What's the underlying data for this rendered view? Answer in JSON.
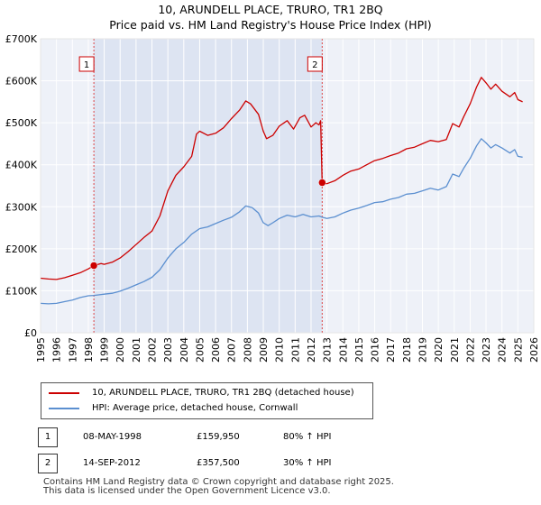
{
  "chart_data": {
    "type": "line",
    "title_line1": "10, ARUNDELL PLACE, TRURO, TR1 2BQ",
    "title_line2": "Price paid vs. HM Land Registry's House Price Index (HPI)",
    "xlim": [
      1995,
      2026
    ],
    "ylim": [
      0,
      700000
    ],
    "x_ticks": [
      "1995",
      "1996",
      "1997",
      "1998",
      "1999",
      "2000",
      "2001",
      "2002",
      "2003",
      "2004",
      "2005",
      "2006",
      "2007",
      "2008",
      "2009",
      "2010",
      "2011",
      "2012",
      "2013",
      "2014",
      "2015",
      "2016",
      "2017",
      "2018",
      "2019",
      "2020",
      "2021",
      "2022",
      "2023",
      "2024",
      "2025",
      "2026"
    ],
    "y_ticks": [
      {
        "value": 0,
        "label": "£0"
      },
      {
        "value": 100000,
        "label": "£100K"
      },
      {
        "value": 200000,
        "label": "£200K"
      },
      {
        "value": 300000,
        "label": "£300K"
      },
      {
        "value": 400000,
        "label": "£400K"
      },
      {
        "value": 500000,
        "label": "£500K"
      },
      {
        "value": 600000,
        "label": "£600K"
      },
      {
        "value": 700000,
        "label": "£700K"
      }
    ],
    "grid": true,
    "series": [
      {
        "name": "10, ARUNDELL PLACE, TRURO, TR1 2BQ (detached house)",
        "color": "#cc0000",
        "points": [
          [
            1995.0,
            130000
          ],
          [
            1995.5,
            128000
          ],
          [
            1996.0,
            127000
          ],
          [
            1996.5,
            131000
          ],
          [
            1997.0,
            137000
          ],
          [
            1997.5,
            143000
          ],
          [
            1998.0,
            152000
          ],
          [
            1998.35,
            159950
          ],
          [
            1998.8,
            165000
          ],
          [
            1999.0,
            163000
          ],
          [
            1999.5,
            168000
          ],
          [
            2000.0,
            178000
          ],
          [
            2000.5,
            193000
          ],
          [
            2001.0,
            210000
          ],
          [
            2001.5,
            227000
          ],
          [
            2002.0,
            242000
          ],
          [
            2002.5,
            278000
          ],
          [
            2003.0,
            338000
          ],
          [
            2003.5,
            375000
          ],
          [
            2004.0,
            395000
          ],
          [
            2004.5,
            420000
          ],
          [
            2004.8,
            473000
          ],
          [
            2005.0,
            480000
          ],
          [
            2005.5,
            470000
          ],
          [
            2006.0,
            475000
          ],
          [
            2006.5,
            488000
          ],
          [
            2007.0,
            510000
          ],
          [
            2007.5,
            530000
          ],
          [
            2007.9,
            552000
          ],
          [
            2008.2,
            545000
          ],
          [
            2008.7,
            520000
          ],
          [
            2009.0,
            480000
          ],
          [
            2009.2,
            462000
          ],
          [
            2009.6,
            470000
          ],
          [
            2010.0,
            492000
          ],
          [
            2010.5,
            505000
          ],
          [
            2010.9,
            485000
          ],
          [
            2011.3,
            512000
          ],
          [
            2011.6,
            518000
          ],
          [
            2012.0,
            490000
          ],
          [
            2012.3,
            500000
          ],
          [
            2012.5,
            495000
          ],
          [
            2012.6,
            505000
          ],
          [
            2012.7,
            357500
          ],
          [
            2013.0,
            355000
          ],
          [
            2013.5,
            362000
          ],
          [
            2014.0,
            375000
          ],
          [
            2014.5,
            385000
          ],
          [
            2015.0,
            390000
          ],
          [
            2015.5,
            400000
          ],
          [
            2016.0,
            410000
          ],
          [
            2016.5,
            415000
          ],
          [
            2017.0,
            422000
          ],
          [
            2017.5,
            428000
          ],
          [
            2018.0,
            438000
          ],
          [
            2018.5,
            442000
          ],
          [
            2019.0,
            450000
          ],
          [
            2019.5,
            458000
          ],
          [
            2020.0,
            455000
          ],
          [
            2020.5,
            460000
          ],
          [
            2020.9,
            498000
          ],
          [
            2021.3,
            490000
          ],
          [
            2021.6,
            515000
          ],
          [
            2022.0,
            545000
          ],
          [
            2022.4,
            585000
          ],
          [
            2022.7,
            608000
          ],
          [
            2023.0,
            595000
          ],
          [
            2023.3,
            580000
          ],
          [
            2023.6,
            592000
          ],
          [
            2024.0,
            575000
          ],
          [
            2024.5,
            562000
          ],
          [
            2024.8,
            572000
          ],
          [
            2025.0,
            555000
          ],
          [
            2025.3,
            550000
          ]
        ]
      },
      {
        "name": "HPI: Average price, detached house, Cornwall",
        "color": "#5b8fd0",
        "points": [
          [
            1995.0,
            70000
          ],
          [
            1995.5,
            69000
          ],
          [
            1996.0,
            70000
          ],
          [
            1996.5,
            74000
          ],
          [
            1997.0,
            78000
          ],
          [
            1997.5,
            84000
          ],
          [
            1998.0,
            88000
          ],
          [
            1998.35,
            89000
          ],
          [
            1998.8,
            91000
          ],
          [
            1999.0,
            92000
          ],
          [
            1999.5,
            94000
          ],
          [
            2000.0,
            99000
          ],
          [
            2000.5,
            106000
          ],
          [
            2001.0,
            114000
          ],
          [
            2001.5,
            122000
          ],
          [
            2002.0,
            132000
          ],
          [
            2002.5,
            150000
          ],
          [
            2003.0,
            178000
          ],
          [
            2003.5,
            200000
          ],
          [
            2004.0,
            215000
          ],
          [
            2004.5,
            235000
          ],
          [
            2005.0,
            248000
          ],
          [
            2005.5,
            252000
          ],
          [
            2006.0,
            260000
          ],
          [
            2006.5,
            268000
          ],
          [
            2007.0,
            275000
          ],
          [
            2007.5,
            288000
          ],
          [
            2007.9,
            302000
          ],
          [
            2008.3,
            298000
          ],
          [
            2008.7,
            285000
          ],
          [
            2009.0,
            262000
          ],
          [
            2009.3,
            255000
          ],
          [
            2009.6,
            262000
          ],
          [
            2010.0,
            272000
          ],
          [
            2010.5,
            280000
          ],
          [
            2011.0,
            276000
          ],
          [
            2011.5,
            282000
          ],
          [
            2012.0,
            276000
          ],
          [
            2012.5,
            278000
          ],
          [
            2012.7,
            275000
          ],
          [
            2013.0,
            272000
          ],
          [
            2013.5,
            276000
          ],
          [
            2014.0,
            285000
          ],
          [
            2014.5,
            292000
          ],
          [
            2015.0,
            297000
          ],
          [
            2015.5,
            303000
          ],
          [
            2016.0,
            310000
          ],
          [
            2016.5,
            312000
          ],
          [
            2017.0,
            318000
          ],
          [
            2017.5,
            322000
          ],
          [
            2018.0,
            330000
          ],
          [
            2018.5,
            332000
          ],
          [
            2019.0,
            338000
          ],
          [
            2019.5,
            344000
          ],
          [
            2020.0,
            340000
          ],
          [
            2020.5,
            348000
          ],
          [
            2020.9,
            378000
          ],
          [
            2021.3,
            372000
          ],
          [
            2021.6,
            392000
          ],
          [
            2022.0,
            415000
          ],
          [
            2022.4,
            445000
          ],
          [
            2022.7,
            462000
          ],
          [
            2023.0,
            452000
          ],
          [
            2023.3,
            440000
          ],
          [
            2023.6,
            448000
          ],
          [
            2024.0,
            440000
          ],
          [
            2024.5,
            428000
          ],
          [
            2024.8,
            436000
          ],
          [
            2025.0,
            420000
          ],
          [
            2025.3,
            418000
          ]
        ]
      }
    ],
    "annotations": [
      {
        "label": "1",
        "x": 1998.35,
        "y": 159950
      },
      {
        "label": "2",
        "x": 2012.7,
        "y": 357500
      }
    ]
  },
  "legend": {
    "property_label": "10, ARUNDELL PLACE, TRURO, TR1 2BQ (detached house)",
    "hpi_label": "HPI: Average price, detached house, Cornwall"
  },
  "sales": [
    {
      "num": "1",
      "date": "08-MAY-1998",
      "price": "£159,950",
      "hpi": "80% ↑ HPI"
    },
    {
      "num": "2",
      "date": "14-SEP-2012",
      "price": "£357,500",
      "hpi": "30% ↑ HPI"
    }
  ],
  "footer": {
    "line1": "Contains HM Land Registry data © Crown copyright and database right 2025.",
    "line2": "This data is licensed under the Open Government Licence v3.0."
  },
  "colors": {
    "property": "#cc0000",
    "hpi": "#5b8fd0",
    "plot_bg": "#eef1f8",
    "grid": "#ffffff",
    "shade": "#dde4f2",
    "marker_line": "#dd4444"
  }
}
